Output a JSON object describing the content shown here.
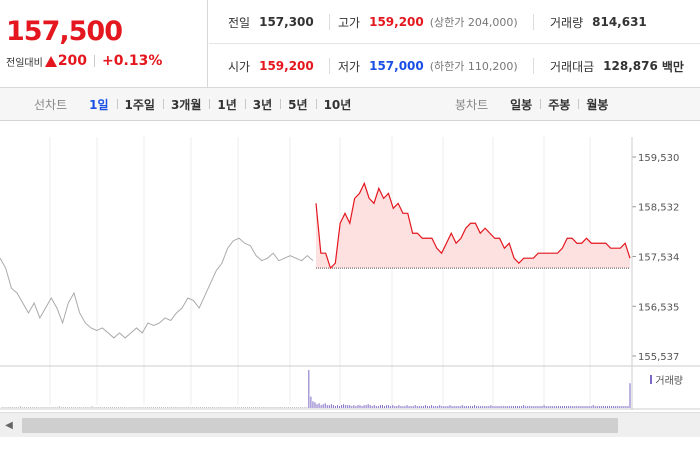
{
  "header": {
    "price": "157,500",
    "change_label": "전일대비",
    "change_value": "200",
    "change_pct": "+0.13%",
    "stats": {
      "prev": {
        "label": "전일",
        "value": "157,300"
      },
      "high": {
        "label": "고가",
        "value": "159,200",
        "sub": "(상한가 204,000)"
      },
      "volume": {
        "label": "거래량",
        "value": "814,631"
      },
      "open": {
        "label": "시가",
        "value": "159,200"
      },
      "low": {
        "label": "저가",
        "value": "157,000",
        "sub": "(하한가 110,200)"
      },
      "amount": {
        "label": "거래대금",
        "value": "128,876",
        "unit": "백만"
      }
    }
  },
  "toolbar": {
    "line_label": "선차트",
    "line_periods": [
      "1일",
      "1주일",
      "3개월",
      "1년",
      "3년",
      "5년",
      "10년"
    ],
    "active_period": "1일",
    "candle_label": "봉차트",
    "candle_periods": [
      "일봉",
      "주봉",
      "월봉"
    ]
  },
  "colors": {
    "up": "#e4161e",
    "down": "#1a4fe6",
    "prev_line": "#aaaaaa",
    "volume": "#7d69c4"
  },
  "chart_data": {
    "type": "line",
    "ylim": [
      155537,
      159530
    ],
    "ytick_labels": [
      "159,530",
      "158,532",
      "157,534",
      "156,535",
      "155,537"
    ],
    "ytick_values": [
      159530,
      158532,
      157534,
      156535,
      155537
    ],
    "series": [
      {
        "values": [
          157500,
          157300,
          156900,
          156800,
          156600,
          156400,
          156600,
          156300,
          156500,
          156700,
          156500,
          156200,
          156600,
          156800,
          156400,
          156200,
          156100,
          156050,
          156100,
          156000,
          155900,
          156000,
          155900,
          156000,
          156100,
          156000,
          156200,
          156150,
          156200,
          156300,
          156250,
          156400,
          156500,
          156700,
          156650,
          156500,
          156750,
          157000,
          157250,
          157400,
          157700,
          157850,
          157900,
          157800,
          157750,
          157550,
          157450,
          157500,
          157600,
          157450,
          157500,
          157550,
          157500,
          157450,
          157550,
          157450
        ]
      },
      {
        "values": [
          158600,
          157600,
          157600,
          157300,
          157400,
          158200,
          158400,
          158200,
          158700,
          158800,
          159000,
          158700,
          158600,
          158900,
          158700,
          158800,
          158500,
          158600,
          158400,
          158400,
          158000,
          158000,
          157900,
          157900,
          157900,
          157700,
          157600,
          157800,
          158000,
          157800,
          157900,
          158100,
          158200,
          158200,
          158000,
          158100,
          158000,
          157900,
          157900,
          157700,
          157800,
          157500,
          157400,
          157500,
          157500,
          157500,
          157600,
          157600,
          157600,
          157600,
          157600,
          157700,
          157900,
          157900,
          157800,
          157800,
          157900,
          157800,
          157800,
          157800,
          157800,
          157700,
          157700,
          157700,
          157800,
          157500
        ]
      }
    ],
    "prev_close": 157300,
    "volume_legend": "거래량",
    "volume_values": [
      1,
      1,
      1,
      1,
      1,
      1,
      1,
      1,
      1,
      2,
      1,
      1,
      1,
      1,
      1,
      1,
      1,
      1,
      1,
      1,
      1,
      1,
      1,
      1,
      1,
      1,
      1,
      1,
      2,
      1,
      1,
      1,
      1,
      1,
      1,
      1,
      1,
      1,
      1,
      1,
      1,
      1,
      1,
      1,
      2,
      1,
      1,
      1,
      1,
      1,
      1,
      1,
      1,
      1,
      1,
      1,
      1,
      1,
      1,
      1,
      1,
      1,
      1,
      1,
      1,
      1,
      1,
      1,
      1,
      1,
      1,
      1,
      1,
      1,
      1,
      1,
      1,
      1,
      1,
      1,
      1,
      1,
      1,
      1,
      1,
      1,
      1,
      1,
      1,
      1,
      1,
      1,
      1,
      1,
      1,
      1,
      1,
      1,
      1,
      1,
      1,
      1,
      1,
      1,
      1,
      1,
      1,
      1,
      1,
      1,
      1,
      1,
      1,
      1,
      1,
      1,
      1,
      1,
      1,
      1,
      1,
      1,
      1,
      1,
      1,
      1,
      1,
      1,
      1,
      1,
      1,
      1,
      1,
      1,
      1,
      1,
      1,
      1,
      1,
      1,
      1,
      1,
      1,
      1,
      1,
      1,
      1,
      1,
      1,
      1,
      40,
      12,
      7,
      6,
      4,
      5,
      3,
      4,
      5,
      3,
      3,
      4,
      3,
      2,
      3,
      2,
      3,
      4,
      3,
      3,
      3,
      2,
      3,
      2,
      3,
      3,
      2,
      3,
      3,
      4,
      3,
      2,
      3,
      2,
      2,
      3,
      3,
      2,
      3,
      3,
      2,
      3,
      2,
      2,
      3,
      2,
      2,
      2,
      3,
      2,
      2,
      2,
      3,
      2,
      2,
      2,
      2,
      3,
      2,
      2,
      3,
      2,
      2,
      2,
      3,
      2,
      2,
      2,
      2,
      3,
      2,
      2,
      2,
      2,
      2,
      3,
      2,
      2,
      2,
      2,
      2,
      3,
      2,
      2,
      2,
      2,
      2,
      2,
      2,
      3,
      2,
      2,
      2,
      2,
      2,
      2,
      2,
      2,
      2,
      2,
      2,
      2,
      2,
      2,
      2,
      3,
      2,
      2,
      2,
      2,
      2,
      2,
      2,
      2,
      2,
      3,
      2,
      2,
      2,
      2,
      2,
      2,
      2,
      2,
      2,
      2,
      2,
      2,
      2,
      2,
      2,
      2,
      2,
      2,
      2,
      2,
      2,
      2,
      2,
      3,
      2,
      2,
      2,
      2,
      2,
      2,
      2,
      2,
      2,
      2,
      2,
      2,
      2,
      2,
      2,
      2,
      2,
      26
    ]
  }
}
